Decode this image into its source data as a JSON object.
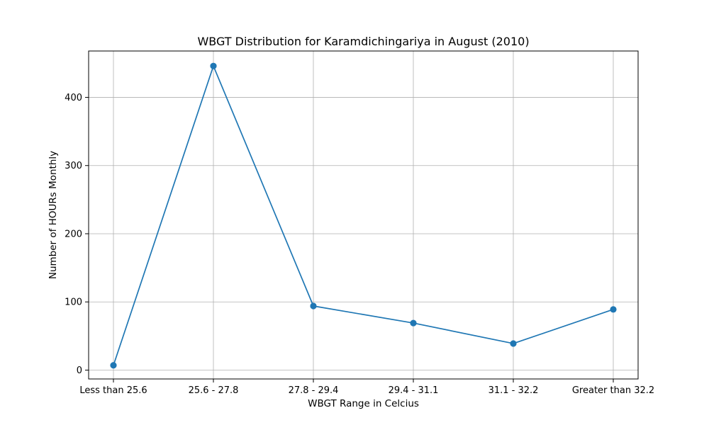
{
  "chart_data": {
    "type": "line",
    "title": "WBGT Distribution for Karamdichingariya in August (2010)",
    "xlabel": "WBGT Range in Celcius",
    "ylabel": "Number of HOURs Monthly",
    "categories": [
      "Less than 25.6",
      "25.6 - 27.8",
      "27.8 - 29.4",
      "29.4 - 31.1",
      "31.1 - 32.2",
      "Greater than 32.2"
    ],
    "series": [
      {
        "values": [
          7,
          446,
          94,
          69,
          39,
          89
        ],
        "color": "#1f77b4",
        "marker": "circle"
      }
    ],
    "ylim": [
      -13,
      468
    ],
    "yticks": [
      0,
      100,
      200,
      300,
      400
    ],
    "grid": true,
    "legend": "none"
  }
}
